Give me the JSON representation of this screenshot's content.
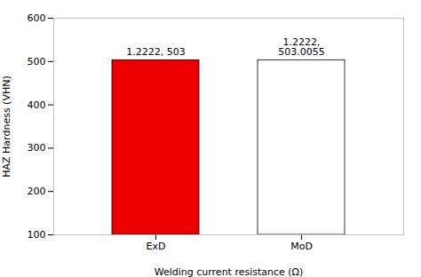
{
  "chart_data": {
    "type": "bar",
    "title": "",
    "xlabel": "Welding current resistance (Ω)",
    "ylabel": "HAZ Hardness (VHN)",
    "categories": [
      "ExD",
      "MoD"
    ],
    "values": [
      503,
      503.0055
    ],
    "colors": [
      "#EE0000",
      "#FFFFFF"
    ],
    "annotations": [
      "1.2222, 503",
      "1.2222,\n503.0055"
    ],
    "ylim": [
      100,
      600
    ],
    "yticks": [
      100,
      200,
      300,
      400,
      500,
      600
    ],
    "grid": false
  }
}
